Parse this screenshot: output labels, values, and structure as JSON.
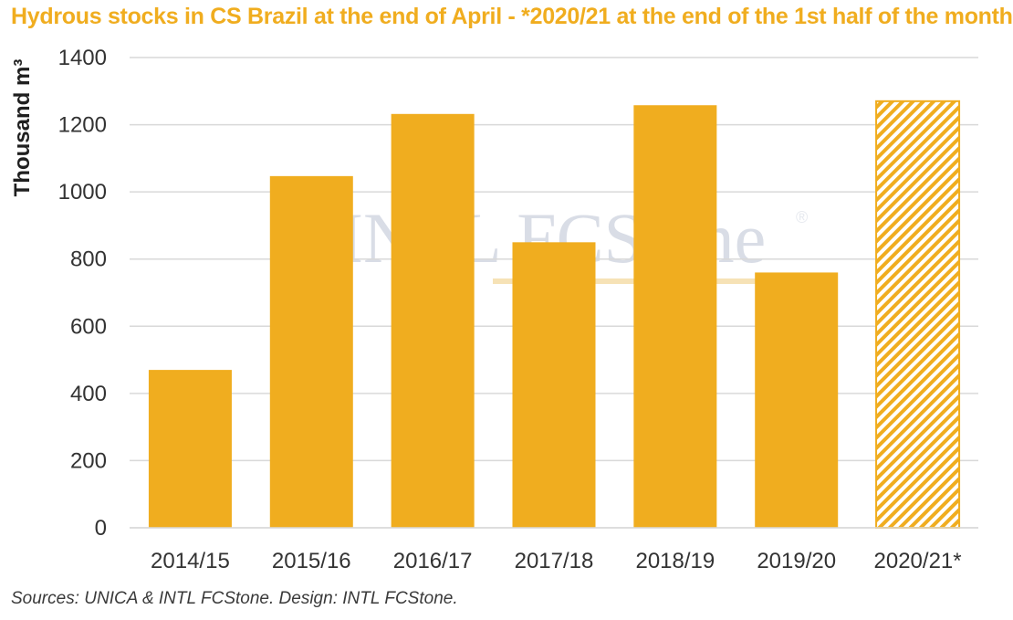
{
  "chart_data": {
    "type": "bar",
    "title": "Hydrous stocks in CS Brazil at the end of April - *2020/21 at the end of the 1st half of the month",
    "ylabel": "Thousand m³",
    "xlabel": "",
    "ylim": [
      0,
      1400
    ],
    "yticks": [
      0,
      200,
      400,
      600,
      800,
      1000,
      1200,
      1400
    ],
    "grid": true,
    "categories": [
      "2014/15",
      "2015/16",
      "2016/17",
      "2017/18",
      "2018/19",
      "2019/20",
      "2020/21*"
    ],
    "values": [
      470,
      1047,
      1232,
      850,
      1258,
      760,
      1270
    ],
    "hatched": [
      false,
      false,
      false,
      false,
      false,
      false,
      true
    ],
    "bar_color": "#f0ad1f",
    "gridline_color": "#d9d9d9"
  },
  "source": "Sources: UNICA & INTL FCStone. Design: INTL FCStone.",
  "watermark": {
    "brand": "INTL FCStone",
    "registered": "®"
  }
}
